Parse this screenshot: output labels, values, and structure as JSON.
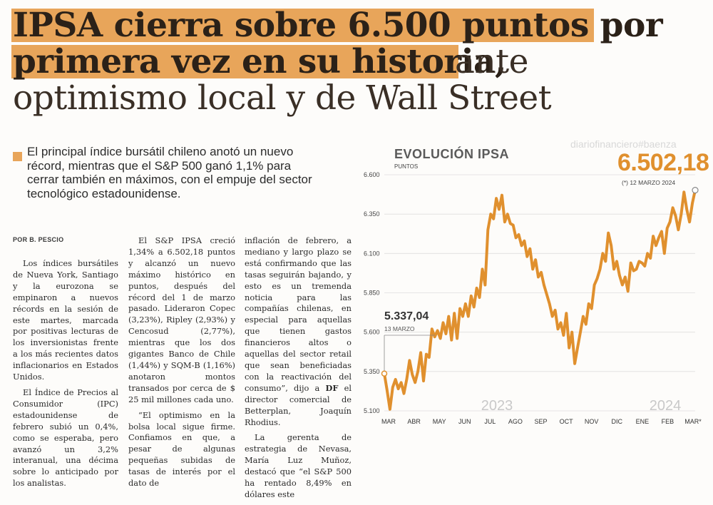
{
  "headline": {
    "line1": "IPSA cierra sobre 6.500 puntos por",
    "line2_bold": "primera vez en su historia,",
    "line2_light": " ante",
    "line3": "optimismo local y de Wall Street"
  },
  "lead": "El principal índice bursátil chileno anotó un nuevo récord, mientras que el S&P 500 ganó 1,1% para cerrar también en máximos, con el empuje del sector tecnológico estadounidense.",
  "byline": "POR B. PESCIO",
  "watermark": "diariofinanciero#baenza",
  "article": {
    "col1": [
      "Los índices bursátiles de Nueva York, Santiago y la eurozona se empinaron a nuevos récords en la sesión de este martes, marcada por positivas lecturas de los inversionistas frente a los más recientes datos inflacionarios en Estados Unidos.",
      "El Índice de Precios al Consumidor (IPC) estadounidense de febrero subió un 0,4%, como se esperaba, pero avanzó un 3,2% interanual, una décima sobre lo anticipado por los analistas."
    ],
    "col2": [
      "El S&P IPSA creció 1,34% a 6.502,18 puntos y alcanzó un nuevo máximo histórico en puntos, después del récord del 1 de marzo pasado. Lideraron Copec (3,23%), Ripley (2,93%) y Cencosud (2,77%), mientras que los dos gigantes Banco de Chile (1,44%) y SQM-B (1,16%) anotaron montos transados por cerca de $ 25 mil millones cada uno.",
      "“El optimismo en la bolsa local sigue firme. Confiamos en que, a pesar de algunas pequeñas subidas de tasas de interés por el dato de"
    ],
    "col3": [
      "inflación de febrero, a mediano y largo plazo se está confirmando que las tasas seguirán bajando, y esto es un tremenda noticia para las compañías chilenas, en especial para aquellas que tienen gastos financieros altos o aquellas del sector retail que sean beneficiadas con la reactivación del consumo”, dijo a ",
      "DF",
      " el director comercial de Betterplan, Joaquín Rhodius.",
      "La gerenta de estrategia de Nevasa, María Luz Muñoz, destacó que “el S&P 500 ha rentado 8,49% en dólares este"
    ]
  },
  "chart_data": {
    "type": "line",
    "title": "EVOLUCIÓN IPSA",
    "ylabel": "PUNTOS",
    "ylim": [
      5100,
      6600
    ],
    "yticks": [
      "6.600",
      "6.350",
      "6.100",
      "5.850",
      "5.600",
      "5.350",
      "5.100"
    ],
    "ytick_values": [
      6600,
      6350,
      6100,
      5850,
      5600,
      5350,
      5100
    ],
    "months": [
      "MAR",
      "ABR",
      "MAY",
      "JUN",
      "JUL",
      "AGO",
      "SEP",
      "OCT",
      "NOV",
      "DIC",
      "ENE",
      "FEB",
      "MAR*"
    ],
    "year_labels": [
      "2023",
      "2024"
    ],
    "start": {
      "value": "5.337,04",
      "date": "13 MARZO"
    },
    "end": {
      "value": "6.502,18",
      "note": "(*) 12 MARZO 2024"
    },
    "series": [
      {
        "color": "#e0902e",
        "values": [
          5337,
          5230,
          5110,
          5250,
          5300,
          5240,
          5280,
          5210,
          5300,
          5420,
          5330,
          5280,
          5350,
          5470,
          5290,
          5460,
          5440,
          5620,
          5570,
          5610,
          5560,
          5660,
          5590,
          5700,
          5550,
          5720,
          5560,
          5750,
          5700,
          5780,
          5700,
          5830,
          5760,
          5880,
          5820,
          6000,
          5900,
          6250,
          6350,
          6320,
          6450,
          6380,
          6470,
          6300,
          6350,
          6290,
          6280,
          6200,
          6220,
          6150,
          6180,
          6080,
          6130,
          6000,
          6060,
          5950,
          5980,
          5900,
          5840,
          5780,
          5700,
          5740,
          5620,
          5660,
          5580,
          5720,
          5500,
          5600,
          5400,
          5500,
          5600,
          5700,
          5650,
          5780,
          5750,
          5900,
          5940,
          6000,
          6100,
          6050,
          6230,
          6150,
          6000,
          6050,
          5960,
          5900,
          5950,
          5860,
          6040,
          5990,
          6000,
          6050,
          6040,
          6020,
          6100,
          6070,
          6210,
          6150,
          6200,
          6240,
          6100,
          6260,
          6300,
          6390,
          6340,
          6250,
          6350,
          6490,
          6380,
          6300,
          6420,
          6502
        ]
      }
    ]
  }
}
